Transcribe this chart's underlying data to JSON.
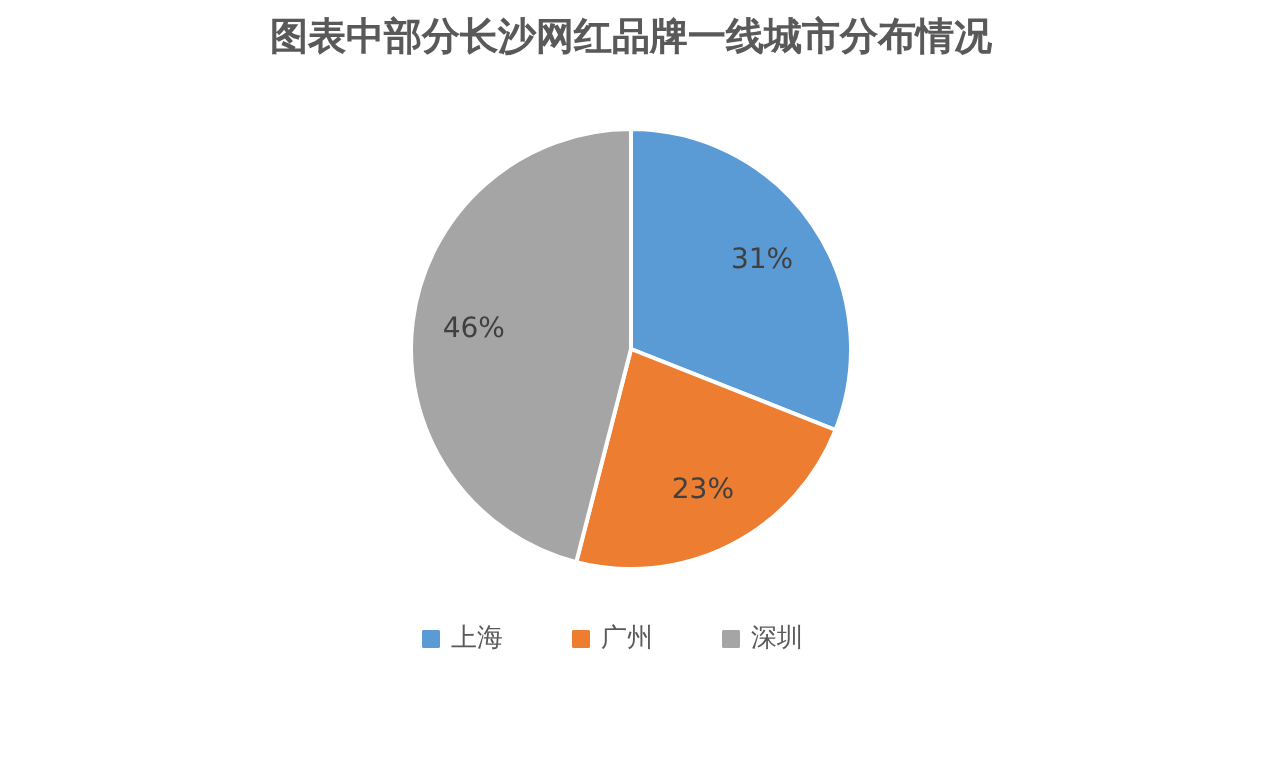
{
  "chart_data": {
    "type": "pie",
    "title": "图表中部分长沙网红品牌一线城市分布情况",
    "categories": [
      "上海",
      "广州",
      "深圳"
    ],
    "values": [
      31,
      23,
      46
    ],
    "colors": [
      "#5b9bd5",
      "#ed7d31",
      "#a5a5a5"
    ],
    "value_labels": [
      "31%",
      "23%",
      "46%"
    ],
    "legend": "bottom"
  }
}
